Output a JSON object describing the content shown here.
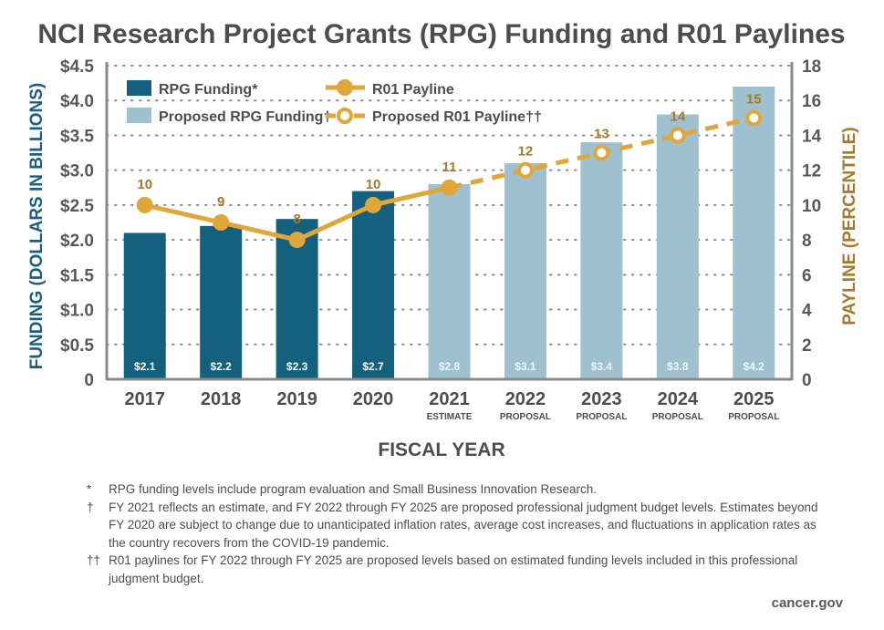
{
  "chart_data": {
    "type": "bar",
    "title": "NCI Research Project Grants (RPG) Funding and R01 Paylines",
    "xlabel": "FISCAL YEAR",
    "ylabel": "FUNDING (DOLLARS IN BILLIONS)",
    "y2label": "PAYLINE (PERCENTILE)",
    "ylim": [
      0,
      4.5
    ],
    "y2lim": [
      0,
      18
    ],
    "yticks": [
      "0",
      "$0.5",
      "$1.0",
      "$1.5",
      "$2.0",
      "$2.5",
      "$3.0",
      "$3.5",
      "$4.0",
      "$4.5"
    ],
    "ytick_values": [
      0,
      0.5,
      1.0,
      1.5,
      2.0,
      2.5,
      3.0,
      3.5,
      4.0,
      4.5
    ],
    "y2ticks": [
      "0",
      "2",
      "4",
      "6",
      "8",
      "10",
      "12",
      "14",
      "16",
      "18"
    ],
    "y2tick_values": [
      0,
      2,
      4,
      6,
      8,
      10,
      12,
      14,
      16,
      18
    ],
    "grid": true,
    "legend_position": "top-left",
    "categories": [
      "2017",
      "2018",
      "2019",
      "2020",
      "2021",
      "2022",
      "2023",
      "2024",
      "2025"
    ],
    "category_sublabels": [
      "",
      "",
      "",
      "",
      "ESTIMATE",
      "PROPOSAL",
      "PROPOSAL",
      "PROPOSAL",
      "PROPOSAL"
    ],
    "series": [
      {
        "name": "RPG Funding*",
        "type": "bar",
        "axis": "left",
        "color": "#14607f",
        "values": [
          2.1,
          2.2,
          2.3,
          2.7,
          null,
          null,
          null,
          null,
          null
        ],
        "labels": [
          "$2.1",
          "$2.2",
          "$2.3",
          "$2.7",
          "",
          "",
          "",
          "",
          ""
        ]
      },
      {
        "name": "Proposed RPG Funding†",
        "type": "bar",
        "axis": "left",
        "color": "#9fc0cf",
        "values": [
          null,
          null,
          null,
          null,
          2.8,
          3.1,
          3.4,
          3.8,
          4.2
        ],
        "labels": [
          "",
          "",
          "",
          "",
          "$2.8",
          "$3.1",
          "$3.4",
          "$3.8",
          "$4.2"
        ]
      },
      {
        "name": "R01 Payline",
        "type": "line",
        "axis": "right",
        "color": "#e0a63a",
        "values": [
          10,
          9,
          8,
          10,
          11,
          null,
          null,
          null,
          null
        ],
        "labels": [
          "10",
          "9",
          "8",
          "10",
          "11",
          "",
          "",
          "",
          ""
        ]
      },
      {
        "name": "Proposed R01 Payline††",
        "type": "line-dashed",
        "axis": "right",
        "color": "#e0a63a",
        "values": [
          null,
          null,
          null,
          null,
          11,
          12,
          13,
          14,
          15
        ],
        "labels": [
          "",
          "",
          "",
          "",
          "",
          "12",
          "13",
          "14",
          "15"
        ]
      }
    ]
  },
  "legend": {
    "rpg_funding": "RPG Funding*",
    "proposed_rpg_funding": "Proposed RPG Funding†",
    "r01_payline": "R01 Payline",
    "proposed_r01_payline": "Proposed R01 Payline††"
  },
  "colors": {
    "funding": "#14607f",
    "proposed_funding": "#9fc0cf",
    "payline": "#e0a63a",
    "payline_label": "#a7792a",
    "axis": "#8a8a8c",
    "grid": "#8a8a8c",
    "text": "#4d4d4f"
  },
  "footnotes": [
    {
      "mark": "*",
      "text": "RPG funding levels include program evaluation and Small Business Innovation Research."
    },
    {
      "mark": "†",
      "text": "FY 2021 reflects an estimate, and FY 2022 through FY 2025 are proposed professional judgment budget levels. Estimates beyond FY 2020 are subject to change due to unanticipated inflation rates, average cost increases, and fluctuations in application rates as the country recovers from the COVID-19 pandemic."
    },
    {
      "mark": "††",
      "text": "R01 paylines for FY 2022 through FY 2025 are proposed levels based on estimated funding levels included in this professional judgment budget."
    }
  ],
  "source": "cancer.gov"
}
